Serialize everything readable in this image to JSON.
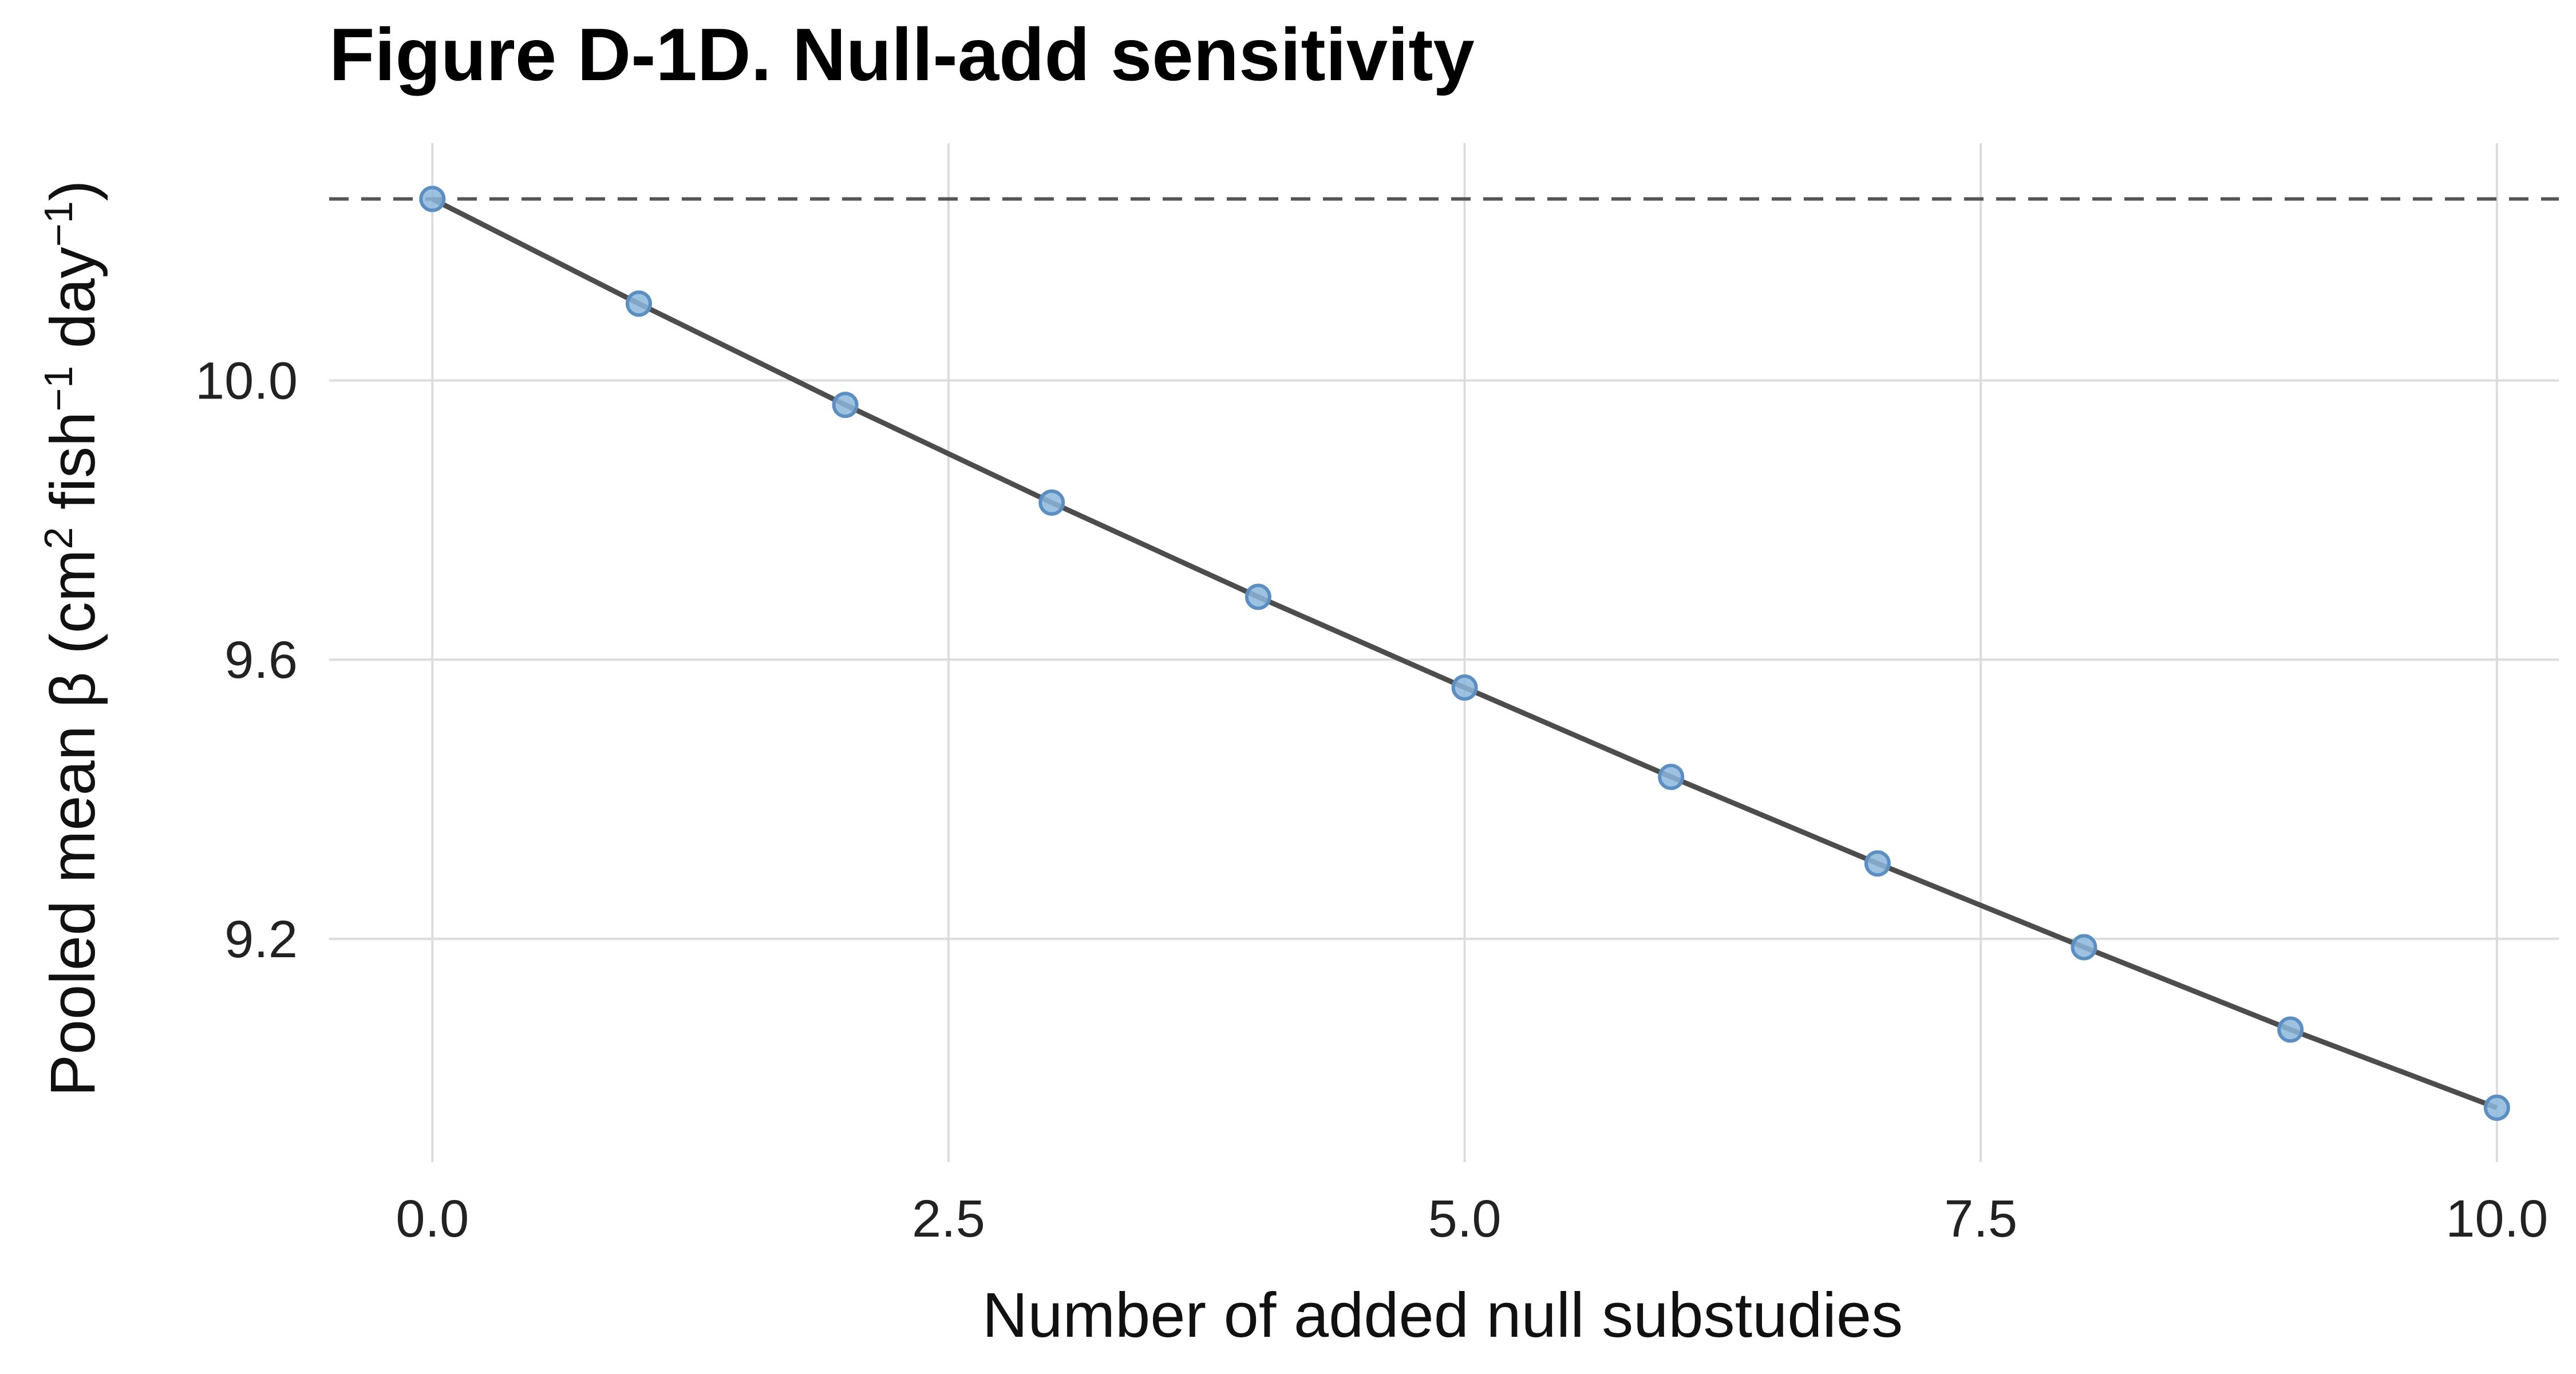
{
  "chart_data": {
    "type": "line",
    "title": "Figure D-1D. Null-add sensitivity",
    "xlabel": "Number of added null substudies",
    "ylabel": {
      "prefix": "Pooled mean β (cm",
      "sup1": "2",
      "mid1": " fish",
      "sup2": "−1",
      "mid2": " day",
      "sup3": "−1",
      "suffix": ")"
    },
    "x": [
      0,
      1,
      2,
      3,
      4,
      5,
      6,
      7,
      8,
      9,
      10
    ],
    "series": [
      {
        "name": "Pooled mean β",
        "values": [
          10.26,
          10.11,
          9.965,
          9.825,
          9.69,
          9.56,
          9.432,
          9.308,
          9.188,
          9.07,
          8.958
        ]
      }
    ],
    "reference_line_y": 10.26,
    "xlim": [
      -0.5,
      10.3
    ],
    "ylim": [
      8.88,
      10.34
    ],
    "x_ticks": [
      0.0,
      2.5,
      5.0,
      7.5,
      10.0
    ],
    "x_tick_labels": [
      "0.0",
      "2.5",
      "5.0",
      "7.5",
      "10.0"
    ],
    "y_ticks": [
      9.2,
      9.6,
      10.0
    ],
    "y_tick_labels": [
      "9.2",
      "9.6",
      "10.0"
    ],
    "grid": true,
    "colors": {
      "line": "#4d4d4d",
      "point_fill": "#8cb6dc",
      "point_stroke": "#5b8fc2",
      "reference": "#555555",
      "grid": "#dcdcdc"
    }
  }
}
